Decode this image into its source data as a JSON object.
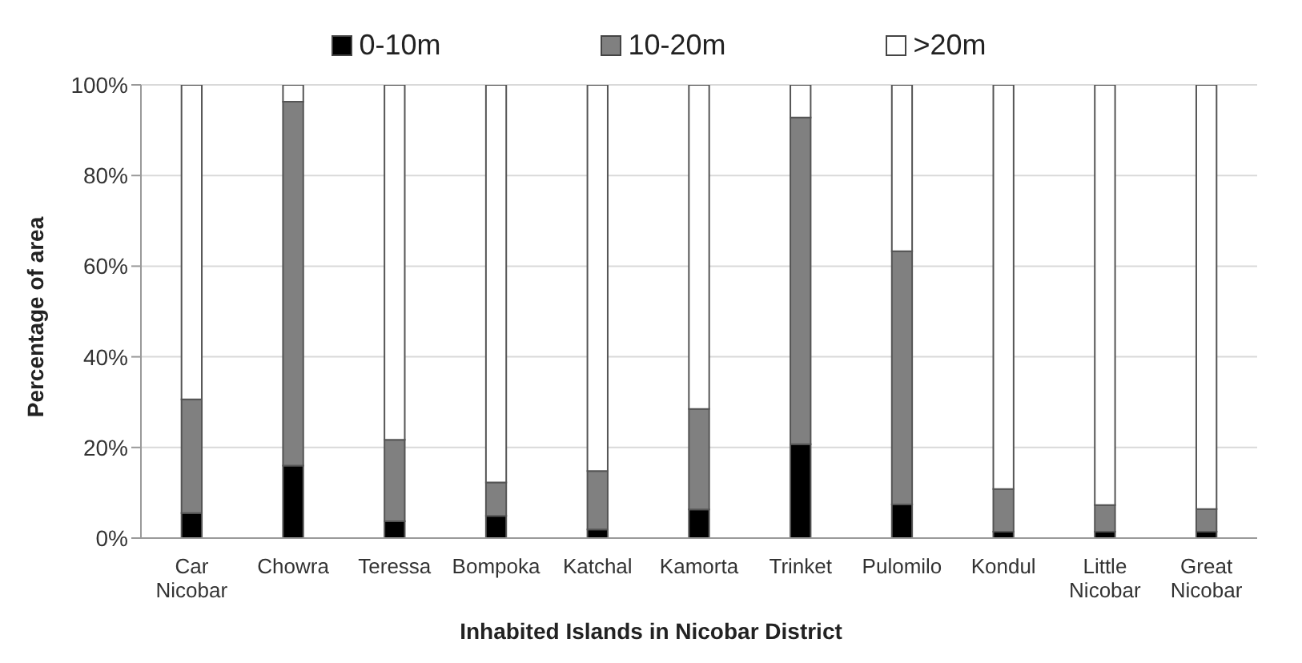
{
  "chart_data": {
    "type": "bar",
    "stacked": true,
    "xlabel": "Inhabited Islands in Nicobar District",
    "ylabel": "Percentage of area",
    "categories": [
      "Car Nicobar",
      "Chowra",
      "Teressa",
      "Bompoka",
      "Katchal",
      "Kamorta",
      "Trinket",
      "Pulomilo",
      "Kondul",
      "Little Nicobar",
      "Great Nicobar"
    ],
    "series": [
      {
        "name": "0-10m",
        "color": "#000000",
        "values": [
          5.5,
          16,
          3.7,
          4.9,
          1.9,
          6.3,
          20.7,
          7.4,
          1.4,
          1.4,
          1.4
        ]
      },
      {
        "name": "10-20m",
        "color": "#808080",
        "values": [
          25.1,
          80.3,
          18,
          7.4,
          12.9,
          22.2,
          72.1,
          55.9,
          9.4,
          5.9,
          5
        ]
      },
      {
        "name": ">20m",
        "color": "#ffffff",
        "values": [
          69.4,
          3.7,
          78.3,
          87.7,
          85.2,
          71.5,
          7.2,
          36.7,
          89.2,
          92.7,
          93.6
        ]
      }
    ],
    "ylim": [
      0,
      100
    ],
    "yticks": [
      {
        "value": 0,
        "label": "0%"
      },
      {
        "value": 20,
        "label": "20%"
      },
      {
        "value": 40,
        "label": "40%"
      },
      {
        "value": 60,
        "label": "60%"
      },
      {
        "value": 80,
        "label": "80%"
      },
      {
        "value": 100,
        "label": "100%"
      }
    ],
    "grid": "y",
    "legend": "top"
  }
}
